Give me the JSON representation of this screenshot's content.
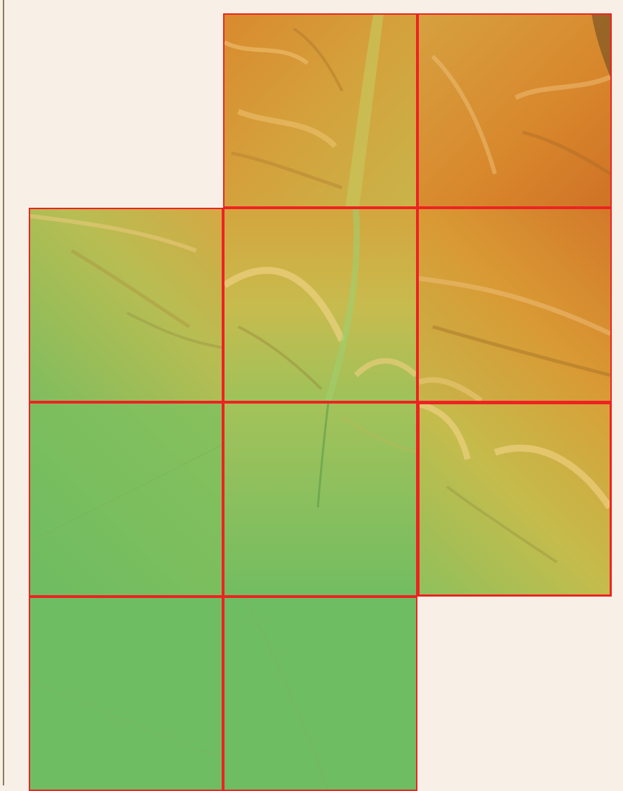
{
  "map": {
    "type": "shaded-relief elevation tile mosaic",
    "colors": {
      "tile_border": "#ee2222",
      "background": "#f8f0e6",
      "low_elevation": "#6fbd62",
      "mid_elevation": "#c9c34a",
      "high_elevation": "#d9892c"
    },
    "tiles": [
      {
        "id": "r0c1",
        "elevation": "high",
        "selected": false
      },
      {
        "id": "r0c2",
        "elevation": "high",
        "selected": false
      },
      {
        "id": "r1c0",
        "elevation": "mid",
        "selected": false
      },
      {
        "id": "r1c1",
        "elevation": "mid-high",
        "selected": false
      },
      {
        "id": "r1c2",
        "elevation": "high",
        "selected": false
      },
      {
        "id": "r2c0",
        "elevation": "low",
        "selected": false
      },
      {
        "id": "r2c1",
        "elevation": "low",
        "selected": false
      },
      {
        "id": "r2c2",
        "elevation": "mid",
        "selected": true
      },
      {
        "id": "r3c0",
        "elevation": "low",
        "selected": false
      },
      {
        "id": "r3c1",
        "elevation": "low",
        "selected": false
      }
    ]
  }
}
